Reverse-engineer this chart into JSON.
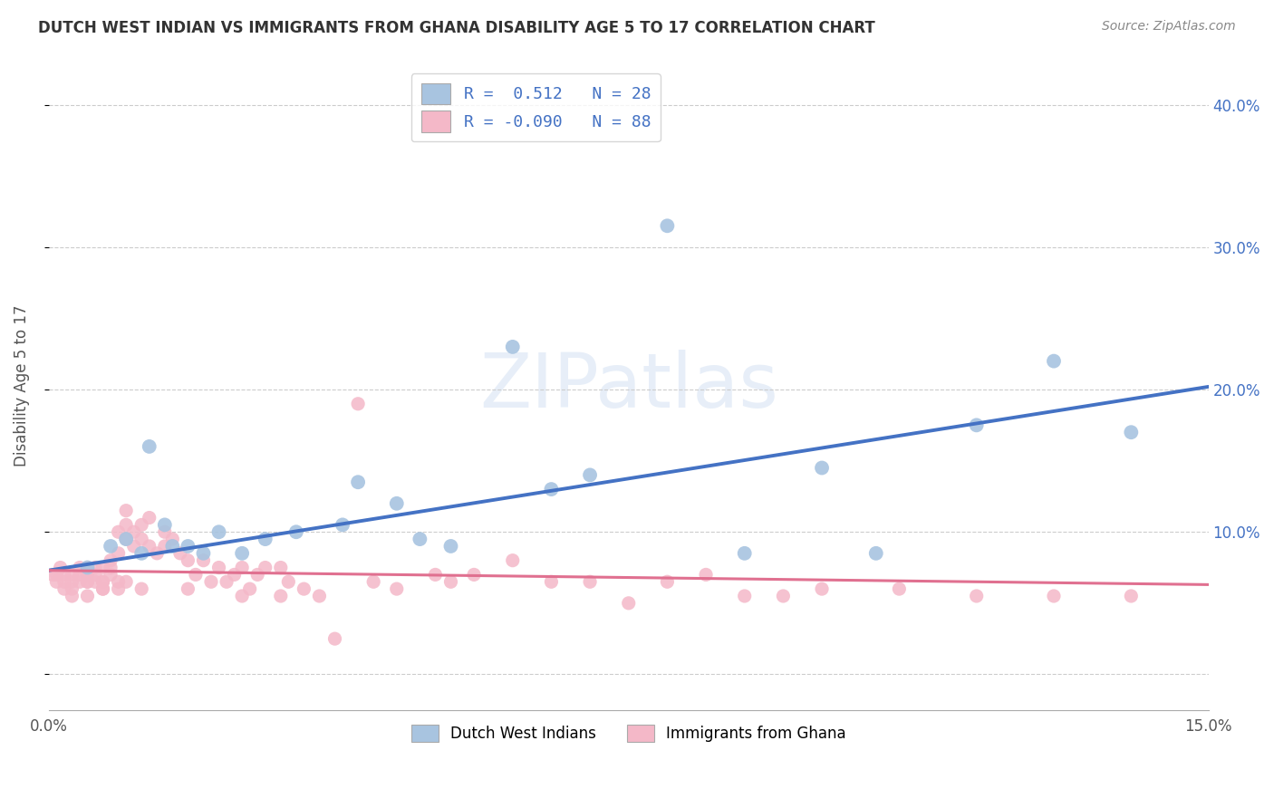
{
  "title": "DUTCH WEST INDIAN VS IMMIGRANTS FROM GHANA DISABILITY AGE 5 TO 17 CORRELATION CHART",
  "source": "Source: ZipAtlas.com",
  "ylabel": "Disability Age 5 to 17",
  "xlim": [
    0.0,
    0.15
  ],
  "ylim": [
    -0.025,
    0.43
  ],
  "yticks": [
    0.0,
    0.1,
    0.2,
    0.3,
    0.4
  ],
  "xticks": [
    0.0,
    0.05,
    0.1,
    0.15
  ],
  "xtick_labels": [
    "0.0%",
    "",
    "",
    "15.0%"
  ],
  "ytick_labels_right": [
    "",
    "10.0%",
    "20.0%",
    "30.0%",
    "40.0%"
  ],
  "blue_color": "#a8c4e0",
  "pink_color": "#f4b8c8",
  "blue_line_color": "#4472c4",
  "pink_line_color": "#e07090",
  "legend_R_blue": " 0.512",
  "legend_N_blue": "28",
  "legend_R_pink": "-0.090",
  "legend_N_pink": "88",
  "watermark": "ZIPatlas",
  "blue_scatter_x": [
    0.005,
    0.008,
    0.01,
    0.012,
    0.013,
    0.015,
    0.016,
    0.018,
    0.02,
    0.022,
    0.025,
    0.028,
    0.032,
    0.038,
    0.04,
    0.045,
    0.048,
    0.052,
    0.06,
    0.065,
    0.07,
    0.08,
    0.09,
    0.1,
    0.107,
    0.12,
    0.13,
    0.14
  ],
  "blue_scatter_y": [
    0.075,
    0.09,
    0.095,
    0.085,
    0.16,
    0.105,
    0.09,
    0.09,
    0.085,
    0.1,
    0.085,
    0.095,
    0.1,
    0.105,
    0.135,
    0.12,
    0.095,
    0.09,
    0.23,
    0.13,
    0.14,
    0.315,
    0.085,
    0.145,
    0.085,
    0.175,
    0.22,
    0.17
  ],
  "pink_scatter_x": [
    0.0005,
    0.001,
    0.001,
    0.0015,
    0.002,
    0.002,
    0.002,
    0.003,
    0.003,
    0.003,
    0.004,
    0.004,
    0.004,
    0.005,
    0.005,
    0.005,
    0.005,
    0.006,
    0.006,
    0.006,
    0.007,
    0.007,
    0.007,
    0.007,
    0.008,
    0.008,
    0.008,
    0.009,
    0.009,
    0.009,
    0.01,
    0.01,
    0.01,
    0.01,
    0.011,
    0.011,
    0.012,
    0.012,
    0.013,
    0.013,
    0.014,
    0.015,
    0.015,
    0.016,
    0.017,
    0.018,
    0.019,
    0.02,
    0.021,
    0.022,
    0.023,
    0.024,
    0.025,
    0.026,
    0.027,
    0.028,
    0.03,
    0.031,
    0.033,
    0.035,
    0.037,
    0.04,
    0.042,
    0.045,
    0.05,
    0.052,
    0.055,
    0.06,
    0.065,
    0.07,
    0.075,
    0.08,
    0.085,
    0.09,
    0.095,
    0.1,
    0.11,
    0.12,
    0.13,
    0.14,
    0.003,
    0.005,
    0.007,
    0.009,
    0.012,
    0.018,
    0.025,
    0.03
  ],
  "pink_scatter_y": [
    0.07,
    0.07,
    0.065,
    0.075,
    0.065,
    0.07,
    0.06,
    0.07,
    0.065,
    0.06,
    0.07,
    0.065,
    0.075,
    0.075,
    0.065,
    0.07,
    0.065,
    0.065,
    0.07,
    0.075,
    0.065,
    0.075,
    0.06,
    0.065,
    0.08,
    0.07,
    0.075,
    0.1,
    0.085,
    0.065,
    0.105,
    0.095,
    0.115,
    0.065,
    0.09,
    0.1,
    0.095,
    0.105,
    0.09,
    0.11,
    0.085,
    0.09,
    0.1,
    0.095,
    0.085,
    0.08,
    0.07,
    0.08,
    0.065,
    0.075,
    0.065,
    0.07,
    0.075,
    0.06,
    0.07,
    0.075,
    0.075,
    0.065,
    0.06,
    0.055,
    0.025,
    0.19,
    0.065,
    0.06,
    0.07,
    0.065,
    0.07,
    0.08,
    0.065,
    0.065,
    0.05,
    0.065,
    0.07,
    0.055,
    0.055,
    0.06,
    0.06,
    0.055,
    0.055,
    0.055,
    0.055,
    0.055,
    0.06,
    0.06,
    0.06,
    0.06,
    0.055,
    0.055
  ],
  "blue_line_x0": 0.0,
  "blue_line_y0": 0.073,
  "blue_line_x1": 0.15,
  "blue_line_y1": 0.202,
  "pink_line_x0": 0.0,
  "pink_line_y0": 0.073,
  "pink_line_x1": 0.15,
  "pink_line_y1": 0.063
}
